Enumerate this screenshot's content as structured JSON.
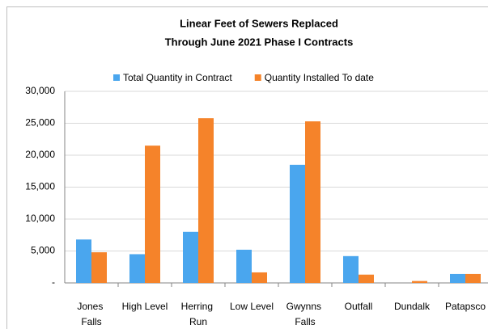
{
  "chart_data": {
    "type": "bar",
    "title": "Linear Feet of Sewers Replaced",
    "subtitle": "Through June 2021 Phase I Contracts",
    "categories": [
      "Jones Falls",
      "High Level",
      "Herring Run",
      "Low Level",
      "Gwynns Falls",
      "Outfall",
      "Dundalk",
      "Patapsco"
    ],
    "series": [
      {
        "name": "Total Quantity in Contract",
        "color": "#4aa6ee",
        "values": [
          6800,
          4500,
          8000,
          5200,
          18500,
          4200,
          0,
          1400
        ]
      },
      {
        "name": "Quantity Installed To date",
        "color": "#f5832a",
        "values": [
          4800,
          21500,
          25800,
          1650,
          25300,
          1300,
          300,
          1400
        ]
      }
    ],
    "ylim": [
      0,
      30000
    ],
    "yticks": [
      {
        "value": 0,
        "label": "-"
      },
      {
        "value": 5000,
        "label": "5,000"
      },
      {
        "value": 10000,
        "label": "10,000"
      },
      {
        "value": 15000,
        "label": "15,000"
      },
      {
        "value": 20000,
        "label": "20,000"
      },
      {
        "value": 25000,
        "label": "25,000"
      },
      {
        "value": 30000,
        "label": "30,000"
      }
    ],
    "grid": true,
    "legend": "top"
  }
}
